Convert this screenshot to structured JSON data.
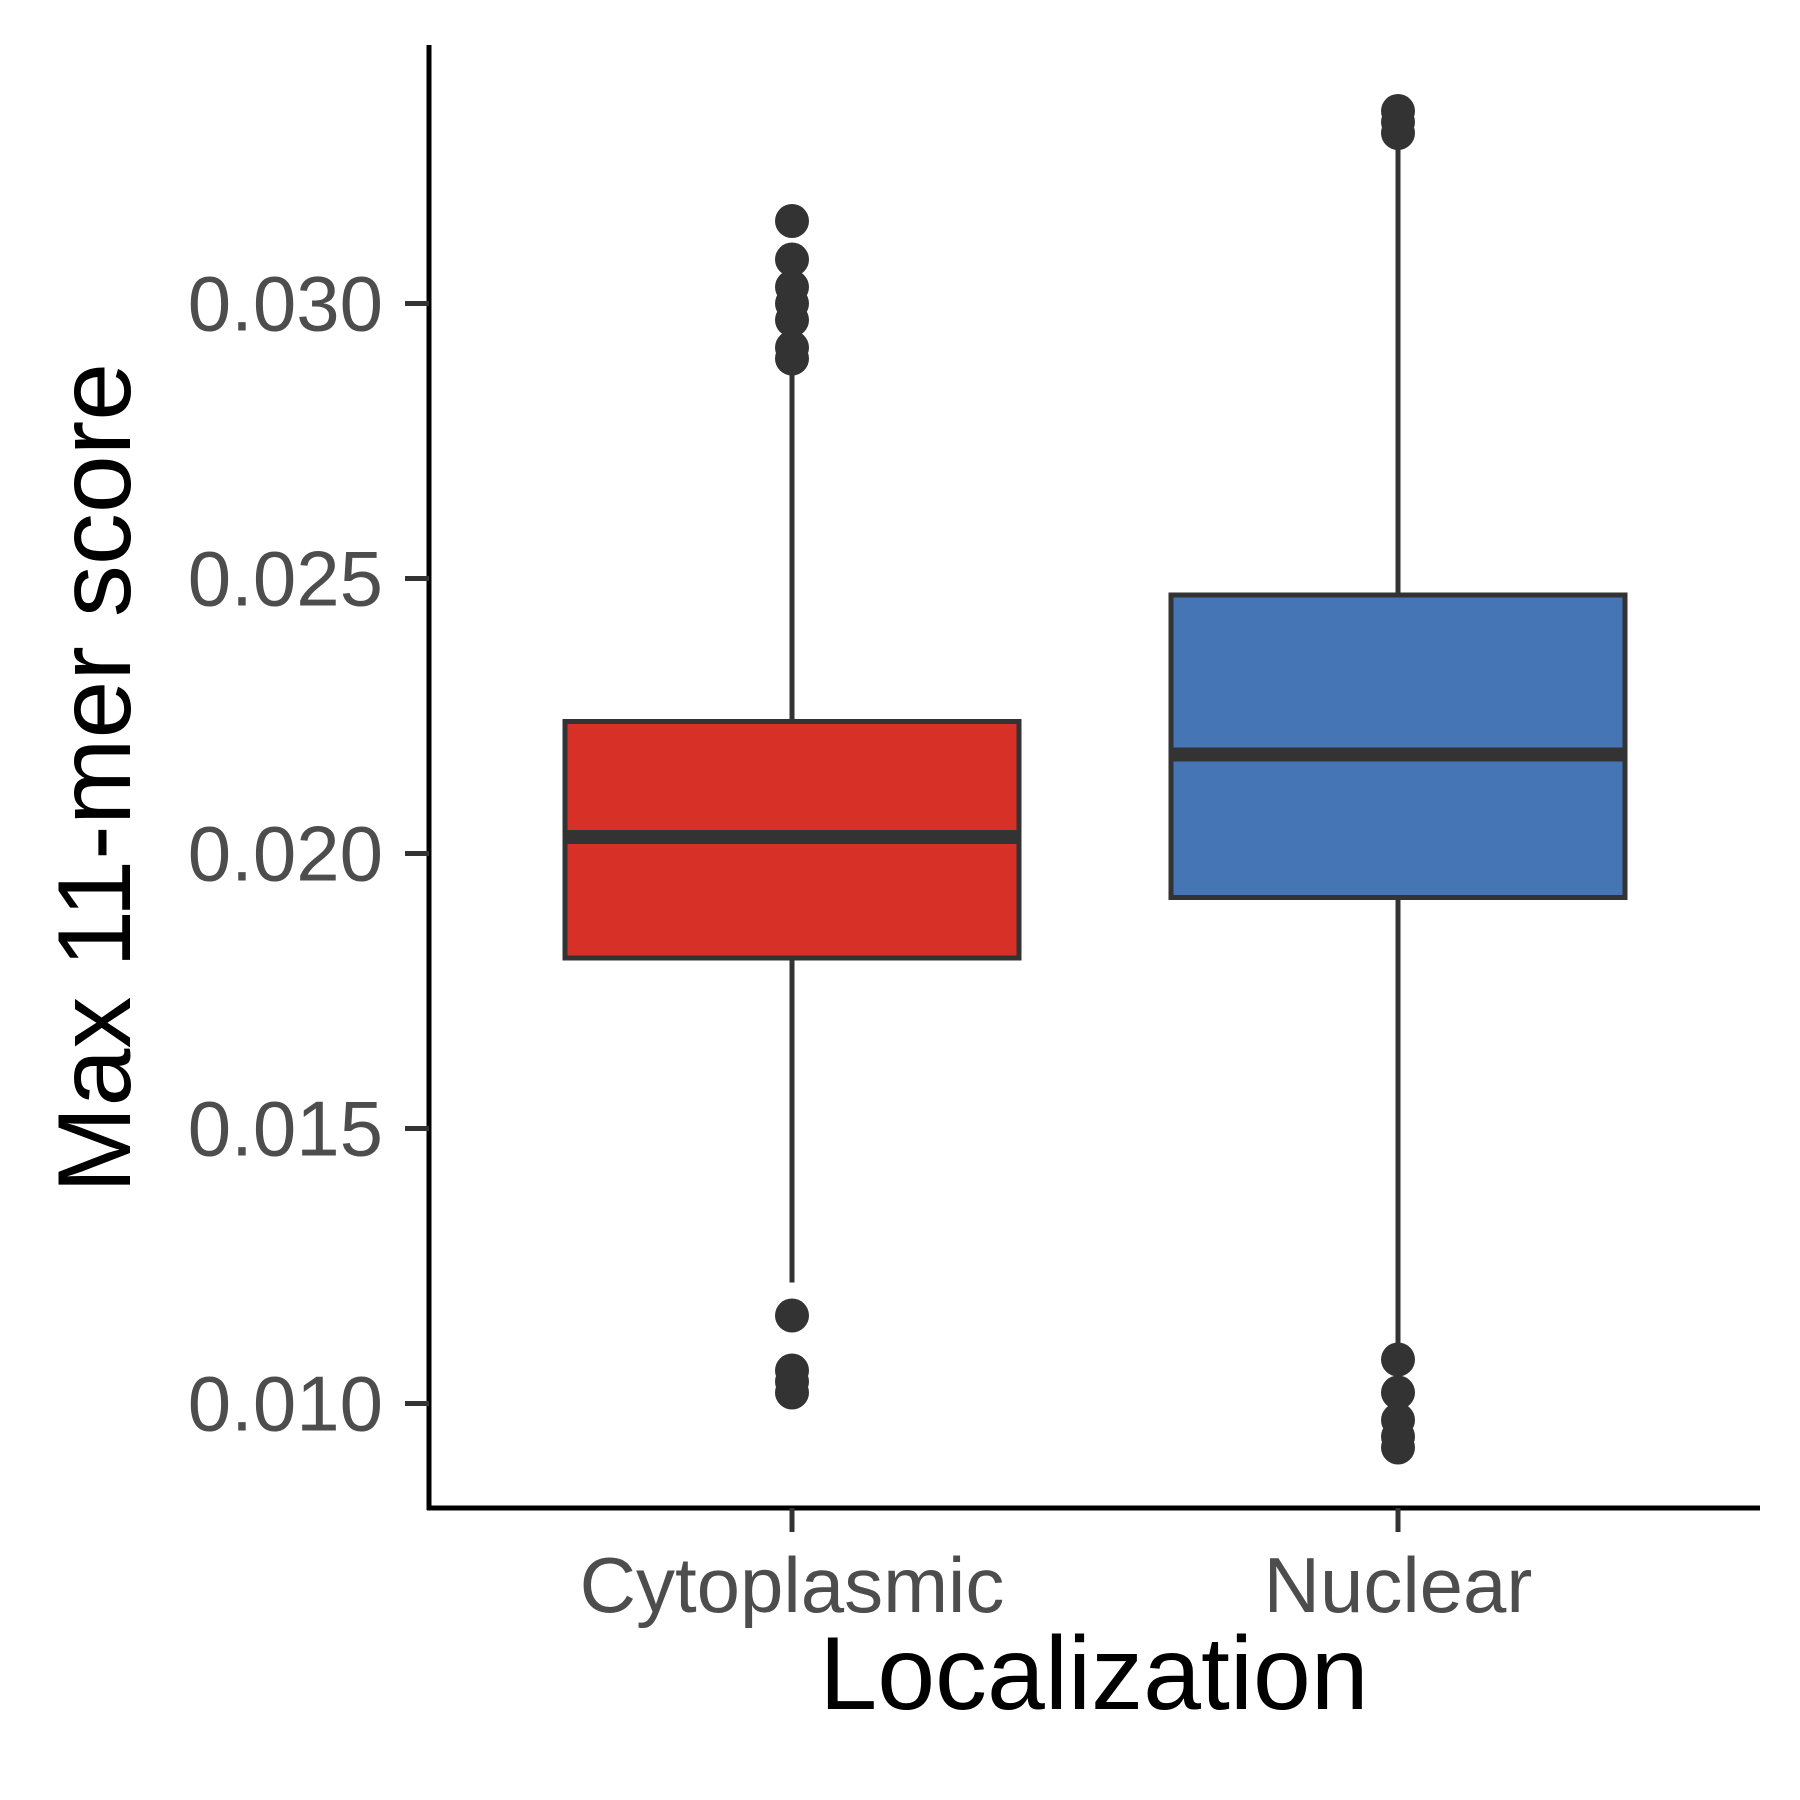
{
  "chart_data": {
    "type": "boxplot",
    "xlabel": "Localization",
    "ylabel": "Max 11-mer score",
    "ylim": [
      0.0081,
      0.0347
    ],
    "yticks": [
      0.01,
      0.015,
      0.02,
      0.025,
      0.03
    ],
    "ytick_labels": [
      "0.010",
      "0.015",
      "0.020",
      "0.025",
      "0.030"
    ],
    "categories": [
      "Cytoplasmic",
      "Nuclear"
    ],
    "grid": false,
    "legend": "none",
    "boxes": [
      {
        "category": "Cytoplasmic",
        "color": "#D73027",
        "whisker_low": 0.0122,
        "q1": 0.0181,
        "median": 0.0203,
        "q3": 0.0224,
        "whisker_high": 0.0289,
        "outliers": [
          0.0315,
          0.0308,
          0.0303,
          0.03,
          0.0297,
          0.0292,
          0.029,
          0.0116,
          0.0106,
          0.0104,
          0.0102
        ]
      },
      {
        "category": "Nuclear",
        "color": "#4575B4",
        "whisker_low": 0.0111,
        "q1": 0.0192,
        "median": 0.0218,
        "q3": 0.0247,
        "whisker_high": 0.033,
        "outliers": [
          0.0335,
          0.0333,
          0.0331,
          0.0108,
          0.0102,
          0.0097,
          0.0094,
          0.0092
        ]
      }
    ]
  }
}
